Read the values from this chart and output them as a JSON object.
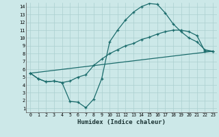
{
  "xlabel": "Humidex (Indice chaleur)",
  "bg_color": "#cce8e8",
  "grid_color": "#aacfcf",
  "line_color": "#1a6b6b",
  "xlim": [
    -0.5,
    23.5
  ],
  "ylim": [
    0.5,
    14.5
  ],
  "xticks": [
    0,
    1,
    2,
    3,
    4,
    5,
    6,
    7,
    8,
    9,
    10,
    11,
    12,
    13,
    14,
    15,
    16,
    17,
    18,
    19,
    20,
    21,
    22,
    23
  ],
  "yticks": [
    1,
    2,
    3,
    4,
    5,
    6,
    7,
    8,
    9,
    10,
    11,
    12,
    13,
    14
  ],
  "curve1_x": [
    0,
    1,
    2,
    3,
    4,
    5,
    6,
    7,
    8,
    9,
    10,
    11,
    12,
    13,
    14,
    15,
    16,
    17,
    18,
    19,
    20,
    21,
    22,
    23
  ],
  "curve1_y": [
    5.5,
    4.8,
    4.4,
    4.5,
    4.3,
    1.9,
    1.8,
    1.1,
    2.2,
    4.8,
    9.5,
    11.0,
    12.3,
    13.3,
    14.0,
    14.4,
    14.3,
    13.2,
    11.8,
    10.8,
    10.0,
    9.5,
    8.5,
    8.3
  ],
  "curve2_x": [
    0,
    23
  ],
  "curve2_y": [
    5.5,
    8.3
  ],
  "curve3_x": [
    0,
    1,
    2,
    3,
    4,
    5,
    6,
    7,
    8,
    9,
    10,
    11,
    12,
    13,
    14,
    15,
    16,
    17,
    18,
    19,
    20,
    21,
    22,
    23
  ],
  "curve3_y": [
    5.5,
    4.8,
    4.4,
    4.5,
    4.3,
    4.5,
    5.0,
    5.3,
    6.5,
    7.3,
    8.0,
    8.5,
    9.0,
    9.3,
    9.8,
    10.1,
    10.5,
    10.8,
    11.0,
    11.0,
    10.8,
    10.3,
    8.3,
    8.3
  ]
}
